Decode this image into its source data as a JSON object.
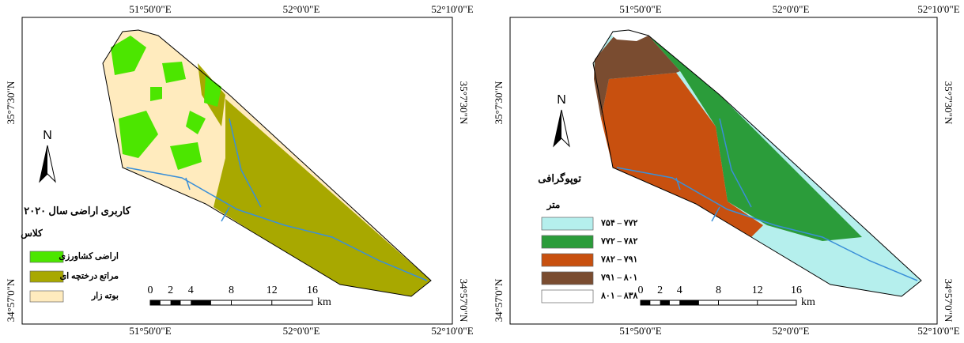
{
  "panels": [
    {
      "coordinates": {
        "top": [
          "51°50'0\"E",
          "52°0'0\"E",
          "52°10'0\"E"
        ],
        "bottom": [
          "51°50'0\"E",
          "52°0'0\"E",
          "52°10'0\"E"
        ],
        "left": [
          "35°7'30\"N",
          "34°57'0\"N"
        ],
        "right": [
          "35°7'30\"N",
          "34°57'0\"N"
        ]
      },
      "north": "N",
      "legend": {
        "title": "کاربری اراضی سال ۲۰۲۰",
        "subtitle": "کلاس",
        "items": [
          {
            "label": "اراضی کشاورزی",
            "color": "#4ce600"
          },
          {
            "label": "مراتع درختچه ای",
            "color": "#a8a800"
          },
          {
            "label": "بوته زار",
            "color": "#ffebbe"
          }
        ]
      },
      "scale": {
        "ticks": [
          "0",
          "2",
          "4",
          "8",
          "12",
          "16"
        ],
        "unit": "km"
      }
    },
    {
      "coordinates": {
        "top": [
          "51°50'0\"E",
          "52°0'0\"E",
          "52°10'0\"E"
        ],
        "bottom": [
          "51°50'0\"E",
          "52°0'0\"E",
          "52°10'0\"E"
        ],
        "left": [
          "35°7'30\"N",
          "34°57'0\"N"
        ],
        "right": [
          "35°7'30\"N",
          "34°57'0\"N"
        ]
      },
      "north": "N",
      "legend": {
        "title": "توپوگرافی",
        "subtitle": "متر",
        "items": [
          {
            "label": "۷۵۴ – ۷۷۲",
            "color": "#b5efed"
          },
          {
            "label": "۷۷۲ – ۷۸۲",
            "color": "#2b9c3a"
          },
          {
            "label": "۷۸۲ – ۷۹۱",
            "color": "#c8500f"
          },
          {
            "label": "۷۹۱ – ۸۰۱",
            "color": "#7a4c30"
          },
          {
            "label": "۸۰۱ – ۸۳۸",
            "color": "#ffffff"
          }
        ]
      },
      "scale": {
        "ticks": [
          "0",
          "2",
          "4",
          "8",
          "12",
          "16"
        ],
        "unit": "km"
      }
    }
  ]
}
